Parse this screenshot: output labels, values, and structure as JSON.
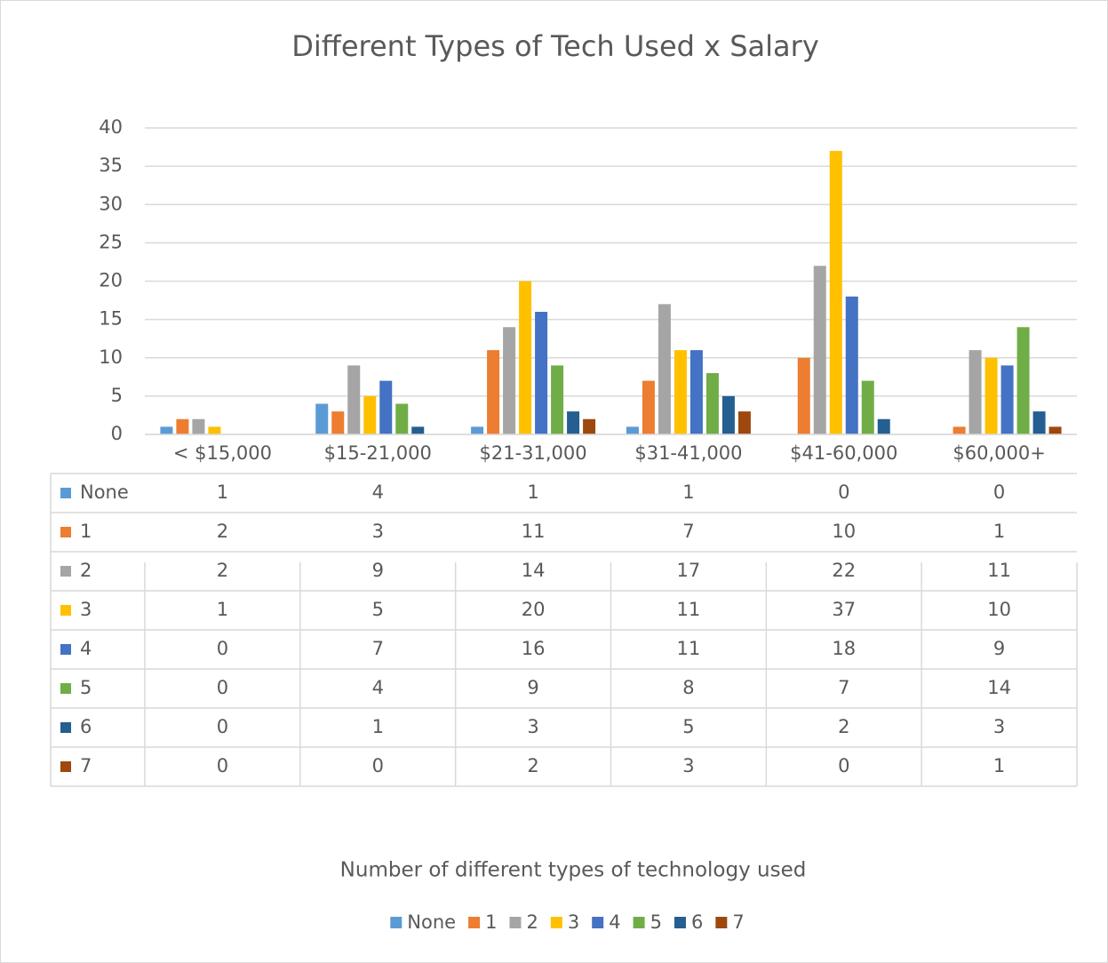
{
  "chart_data": {
    "type": "bar",
    "title": "Different Types of Tech Used x Salary",
    "x_label": "Number of different types of technology used",
    "categories": [
      "< $15,000",
      "$15-21,000",
      "$21-31,000",
      "$31-41,000",
      "$41-60,000",
      "$60,000+"
    ],
    "series": [
      {
        "name": "None",
        "color": "#5b9bd5",
        "values": [
          1,
          4,
          1,
          1,
          0,
          0
        ]
      },
      {
        "name": "1",
        "color": "#ed7d31",
        "values": [
          2,
          3,
          11,
          7,
          10,
          1
        ]
      },
      {
        "name": "2",
        "color": "#a5a5a5",
        "values": [
          2,
          9,
          14,
          17,
          22,
          11
        ]
      },
      {
        "name": "3",
        "color": "#ffc000",
        "values": [
          1,
          5,
          20,
          11,
          37,
          10
        ]
      },
      {
        "name": "4",
        "color": "#4472c4",
        "values": [
          0,
          7,
          16,
          11,
          18,
          9
        ]
      },
      {
        "name": "5",
        "color": "#70ad47",
        "values": [
          0,
          4,
          9,
          8,
          7,
          14
        ]
      },
      {
        "name": "6",
        "color": "#255e91",
        "values": [
          0,
          1,
          3,
          5,
          2,
          3
        ]
      },
      {
        "name": "7",
        "color": "#9e480e",
        "values": [
          0,
          0,
          2,
          3,
          0,
          1
        ]
      }
    ],
    "ylim": [
      0,
      40
    ],
    "yticks": [
      0,
      5,
      10,
      15,
      20,
      25,
      30,
      35,
      40
    ],
    "grid": true,
    "legend": "bottom",
    "data_table": true
  }
}
